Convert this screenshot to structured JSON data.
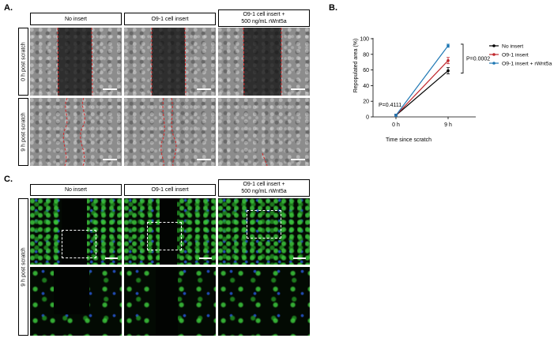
{
  "panels": {
    "a_label": "A.",
    "b_label": "B.",
    "c_label": "C."
  },
  "panel_a": {
    "columns": [
      "No insert",
      "O9-1 cell insert",
      "O9-1 cell insert +\n500 ng/mL rWnt5a"
    ],
    "rows": [
      "0 h post scratch",
      "9 h post scratch"
    ]
  },
  "panel_c": {
    "columns": [
      "No insert",
      "O9-1 cell insert",
      "O9-1 cell insert +\n500 ng/mL rWnt5a"
    ],
    "row": "9 h post scratch"
  },
  "colors": {
    "scratch_line": "#d42a2a",
    "no_insert": "#000000",
    "o91_insert": "#c0262c",
    "o91_rwnt5a": "#1f78b4"
  },
  "chart_data": {
    "type": "line",
    "title": "",
    "xlabel": "Time since scratch",
    "ylabel": "Repopulated area (%)",
    "categories": [
      "0 h",
      "9 h"
    ],
    "ylim": [
      0,
      100
    ],
    "yticks": [
      "0",
      "20",
      "40",
      "60",
      "80",
      "100"
    ],
    "series": [
      {
        "name": "No insert",
        "color": "#000000",
        "values": [
          2,
          59
        ],
        "errors": [
          1.5,
          4
        ]
      },
      {
        "name": "O9-1 insert",
        "color": "#c0262c",
        "values": [
          2,
          72
        ],
        "errors": [
          1.5,
          4
        ]
      },
      {
        "name": "O9-1 insert + rWnt5a",
        "color": "#1f78b4",
        "values": [
          2,
          91
        ],
        "errors": [
          1.5,
          2
        ]
      }
    ],
    "annotations": [
      "P=0.4111",
      "P=0.0002"
    ],
    "legend": "right"
  }
}
